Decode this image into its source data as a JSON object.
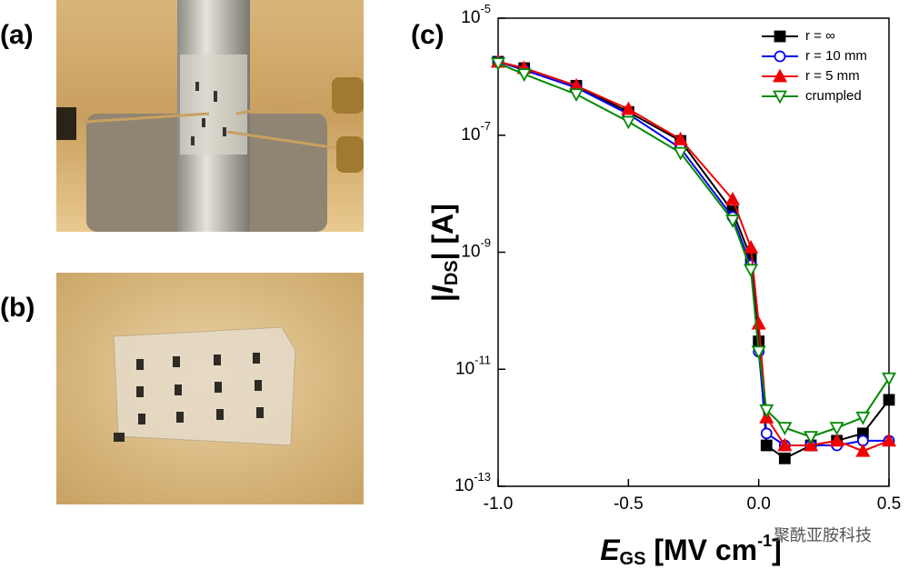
{
  "panels": [
    {
      "label": "(a)"
    },
    {
      "label": "(b)"
    }
  ],
  "chart_data": {
    "type": "line",
    "panel_label": "(c)",
    "y_label_parts": [
      "|",
      "I",
      "DS",
      "| [A]"
    ],
    "x_label_parts": [
      "E",
      "GS",
      " [MV cm",
      "-1",
      "]"
    ],
    "log_y": true,
    "xlim": [
      -1.0,
      0.5
    ],
    "xticks": [
      {
        "value": -1.0,
        "label": "-1.0"
      },
      -0.5,
      {
        "value": 0.0,
        "label": "0.0"
      },
      0.5
    ],
    "ylim": [
      1e-13,
      1e-05
    ],
    "yticks": [
      {
        "value": 1e-13,
        "label": "10",
        "exponent": "-13"
      },
      {
        "value": 1e-11,
        "label": "10",
        "exponent": "-11"
      },
      {
        "value": 1e-09,
        "label": "10",
        "exponent": "-9"
      },
      {
        "value": 1e-07,
        "label": "10",
        "exponent": "-7"
      },
      {
        "value": 1e-05,
        "label": "10",
        "exponent": "-5"
      }
    ],
    "legend": "upper right",
    "x": [
      -1.0,
      -0.9,
      -0.7,
      -0.5,
      -0.3,
      -0.1,
      -0.03,
      0.0,
      0.03,
      0.1,
      0.2,
      0.3,
      0.4,
      0.5
    ],
    "series": [
      {
        "name": "r = ∞",
        "color": "#000000",
        "marker": "square",
        "values": [
          1.8e-06,
          1.4e-06,
          7e-07,
          2.5e-07,
          8e-08,
          5e-09,
          8e-10,
          3e-11,
          5e-13,
          3e-13,
          5e-13,
          6e-13,
          8e-13,
          3e-12
        ]
      },
      {
        "name": "r = 10 mm",
        "color": "#0000ee",
        "marker": "circle",
        "values": [
          1.8e-06,
          1.3e-06,
          6.5e-07,
          2.3e-07,
          6e-08,
          4e-09,
          6e-10,
          2e-11,
          8e-13,
          5e-13,
          5e-13,
          5e-13,
          6e-13,
          6e-13
        ]
      },
      {
        "name": "r = 5 mm",
        "color": "#ee0000",
        "marker": "triangle",
        "values": [
          1.8e-06,
          1.4e-06,
          7e-07,
          2.8e-07,
          8.5e-08,
          8e-09,
          1.2e-09,
          6e-11,
          1.5e-12,
          5e-13,
          5e-13,
          6e-13,
          4e-13,
          6e-13
        ]
      },
      {
        "name": "crumpled",
        "color": "#008800",
        "marker": "triangle-down",
        "values": [
          1.7e-06,
          1.1e-06,
          5e-07,
          1.7e-07,
          5e-08,
          3.5e-09,
          5e-10,
          2e-11,
          2e-12,
          1e-12,
          7e-13,
          1e-12,
          1.5e-12,
          7e-12
        ]
      }
    ],
    "watermark": "聚酰亚胺科技"
  }
}
